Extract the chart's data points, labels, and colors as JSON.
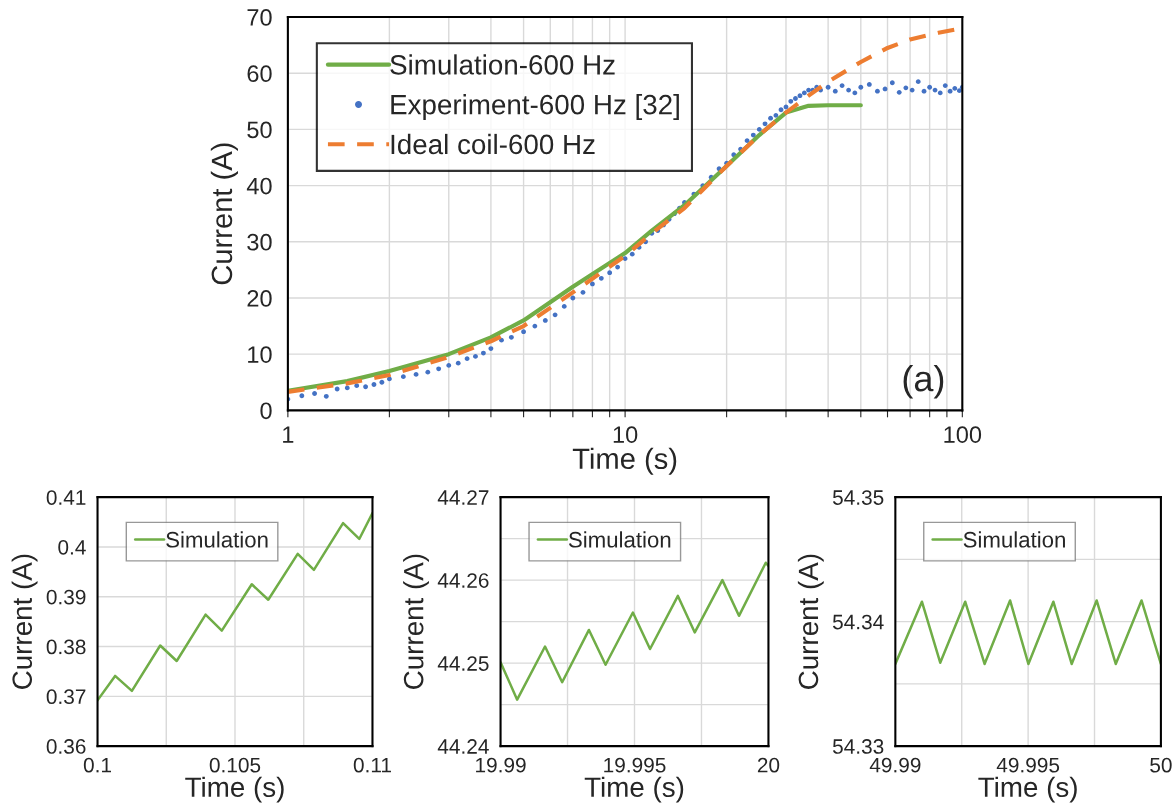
{
  "chart_data": [
    {
      "type": "line",
      "xlabel": "Time (s)",
      "ylabel": "Current (A)",
      "log": "x",
      "xlim": [
        1,
        100
      ],
      "ylim": [
        0,
        70
      ],
      "xticks": [
        1,
        {
          "value": 2,
          "label": null
        },
        {
          "value": 3,
          "label": null
        },
        {
          "value": 4,
          "label": null
        },
        {
          "value": 5,
          "label": null
        },
        {
          "value": 6,
          "label": null
        },
        {
          "value": 7,
          "label": null
        },
        {
          "value": 8,
          "label": null
        },
        {
          "value": 9,
          "label": null
        },
        10,
        {
          "value": 20,
          "label": null
        },
        {
          "value": 30,
          "label": null
        },
        {
          "value": 40,
          "label": null
        },
        {
          "value": 50,
          "label": null
        },
        {
          "value": 60,
          "label": null
        },
        {
          "value": 70,
          "label": null
        },
        {
          "value": 80,
          "label": null
        },
        {
          "value": 90,
          "label": null
        },
        100
      ],
      "yticks": [
        0,
        10,
        20,
        30,
        40,
        50,
        60,
        70
      ],
      "grid": true,
      "legend": "top left",
      "annotations": [
        "(a)"
      ],
      "series": [
        {
          "name": "Simulation-600 Hz",
          "color": "#70ad47",
          "line_style": "solid",
          "marker": "none",
          "x": [
            1,
            1.5,
            2,
            3,
            4,
            5,
            7,
            10,
            12,
            15,
            20,
            25,
            30,
            35,
            40,
            50
          ],
          "values": [
            3.5,
            5.2,
            7,
            10,
            13,
            16,
            22,
            28,
            32,
            36.5,
            43.5,
            49,
            53,
            54.2,
            54.3,
            54.3
          ]
        },
        {
          "name": "Experiment-600 Hz [32]",
          "type": "scatter",
          "color": "#4472c4",
          "marker": "circle",
          "x": [
            1,
            1.1,
            1.2,
            1.3,
            1.4,
            1.5,
            1.6,
            1.7,
            1.8,
            1.9,
            2,
            2.2,
            2.4,
            2.6,
            2.8,
            3,
            3.2,
            3.4,
            3.6,
            3.8,
            4,
            4.3,
            4.6,
            5,
            5.4,
            5.8,
            6.2,
            6.6,
            7,
            7.5,
            8,
            8.5,
            9,
            9.5,
            10,
            10.5,
            11,
            11.5,
            12,
            12.5,
            13,
            13.5,
            14,
            14.5,
            15,
            16,
            17,
            18,
            19,
            20,
            21,
            22,
            23,
            24,
            25,
            26,
            27,
            28,
            29,
            30,
            31,
            32,
            33,
            34,
            35,
            36,
            37,
            38,
            40,
            42,
            44,
            46,
            48,
            50,
            53,
            56,
            59,
            62,
            65,
            68,
            71,
            74,
            77,
            80,
            83,
            86,
            89,
            92,
            95,
            98,
            100
          ],
          "values": [
            2,
            2.6,
            3,
            2.5,
            3.8,
            4,
            4.4,
            4.2,
            4.6,
            5,
            5.6,
            6,
            6.4,
            6.8,
            7.4,
            8,
            8.4,
            9.2,
            9.6,
            10.2,
            11,
            12.5,
            13,
            14,
            15,
            16,
            17,
            18.5,
            20,
            21,
            22.5,
            23.5,
            24.5,
            25.5,
            27,
            27.8,
            29,
            30,
            31.5,
            32,
            33,
            34,
            35,
            36,
            37,
            38.5,
            40,
            41.5,
            43,
            44,
            45.5,
            46.5,
            48,
            49,
            50,
            51,
            52,
            52.5,
            53.5,
            54,
            55,
            55.5,
            56,
            56.5,
            57,
            57,
            57.5,
            57,
            57.5,
            56.8,
            57.8,
            57,
            56.5,
            57.5,
            58,
            56.8,
            57.2,
            58.3,
            56.6,
            57.4,
            57,
            58.5,
            56.8,
            57.5,
            57,
            56.5,
            57.8,
            56.8,
            57.3,
            56.9,
            57.5
          ]
        },
        {
          "name": "Ideal coil-600 Hz",
          "color": "#ed7d31",
          "line_style": "dashed",
          "marker": "none",
          "x": [
            1,
            1.5,
            2,
            3,
            4,
            5,
            7,
            10,
            12,
            15,
            20,
            25,
            30,
            35,
            40,
            50,
            60,
            70,
            85,
            100
          ],
          "values": [
            3.3,
            4.8,
            6.3,
            9.5,
            12.3,
            15,
            21,
            27.5,
            31.5,
            36,
            43.5,
            49,
            53,
            56,
            58.5,
            62,
            64.5,
            66,
            67.2,
            68
          ]
        }
      ]
    },
    {
      "type": "line",
      "xlabel": "Time (s)",
      "ylabel": "Current (A)",
      "xlim": [
        0.1,
        0.11
      ],
      "ylim": [
        0.36,
        0.41
      ],
      "xticks": [
        0.1,
        {
          "value": 0.1025,
          "label": null
        },
        0.105,
        {
          "value": 0.1075,
          "label": null
        },
        0.11
      ],
      "yticks": [
        0.36,
        0.37,
        0.38,
        0.39,
        0.4,
        0.41
      ],
      "grid": true,
      "legend": "top left",
      "series": [
        {
          "name": "Simulation",
          "color": "#70ad47",
          "line_style": "solid",
          "marker": "none",
          "x": [
            0.1,
            0.10064,
            0.10125,
            0.10228,
            0.10288,
            0.10393,
            0.10452,
            0.10561,
            0.10621,
            0.10728,
            0.10787,
            0.10893,
            0.10952,
            0.11
          ],
          "values": [
            0.3692,
            0.3741,
            0.3711,
            0.3802,
            0.3771,
            0.3864,
            0.3832,
            0.3925,
            0.3894,
            0.3986,
            0.3954,
            0.4048,
            0.4016,
            0.4068
          ]
        }
      ]
    },
    {
      "type": "line",
      "xlabel": "Time (s)",
      "ylabel": "Current (A)",
      "xlim": [
        19.99,
        20
      ],
      "ylim": [
        44.24,
        44.27
      ],
      "xticks": [
        19.99,
        {
          "value": 19.9925,
          "label": null
        },
        19.995,
        {
          "value": 19.9975,
          "label": null
        },
        20
      ],
      "yticks": [
        44.24,
        {
          "value": 44.245,
          "label": null
        },
        44.25,
        {
          "value": 44.255,
          "label": null
        },
        44.26,
        {
          "value": 44.265,
          "label": null
        },
        44.27
      ],
      "grid": true,
      "legend": "top left",
      "series": [
        {
          "name": "Simulation",
          "color": "#70ad47",
          "line_style": "solid",
          "marker": "none",
          "x": [
            19.99,
            19.99062,
            19.99166,
            19.9923,
            19.9933,
            19.99392,
            19.99494,
            19.99558,
            19.99662,
            19.99725,
            19.99828,
            19.9989,
            19.9999,
            20
          ],
          "values": [
            44.2501,
            44.2456,
            44.252,
            44.2477,
            44.254,
            44.2498,
            44.2561,
            44.2517,
            44.2581,
            44.2537,
            44.26,
            44.2557,
            44.2621,
            44.2617
          ]
        }
      ]
    },
    {
      "type": "line",
      "xlabel": "Time (s)",
      "ylabel": "Current (A)",
      "xlim": [
        49.99,
        50
      ],
      "ylim": [
        54.33,
        54.35
      ],
      "xticks": [
        49.99,
        {
          "value": 49.9925,
          "label": null
        },
        49.995,
        {
          "value": 49.9975,
          "label": null
        },
        50
      ],
      "yticks": [
        54.33,
        {
          "value": 54.335,
          "label": null
        },
        54.34,
        {
          "value": 54.345,
          "label": null
        },
        54.35
      ],
      "grid": true,
      "legend": "top left",
      "series": [
        {
          "name": "Simulation",
          "color": "#70ad47",
          "line_style": "solid",
          "marker": "none",
          "x": [
            49.99,
            49.991,
            49.99169,
            49.99263,
            49.99336,
            49.99432,
            49.99501,
            49.99595,
            49.99664,
            49.99758,
            49.9983,
            49.99927,
            50
          ],
          "values": [
            54.3366,
            54.3416,
            54.3367,
            54.3416,
            54.3366,
            54.3417,
            54.3366,
            54.3416,
            54.3366,
            54.3417,
            54.3366,
            54.3417,
            54.3366
          ]
        }
      ]
    }
  ]
}
